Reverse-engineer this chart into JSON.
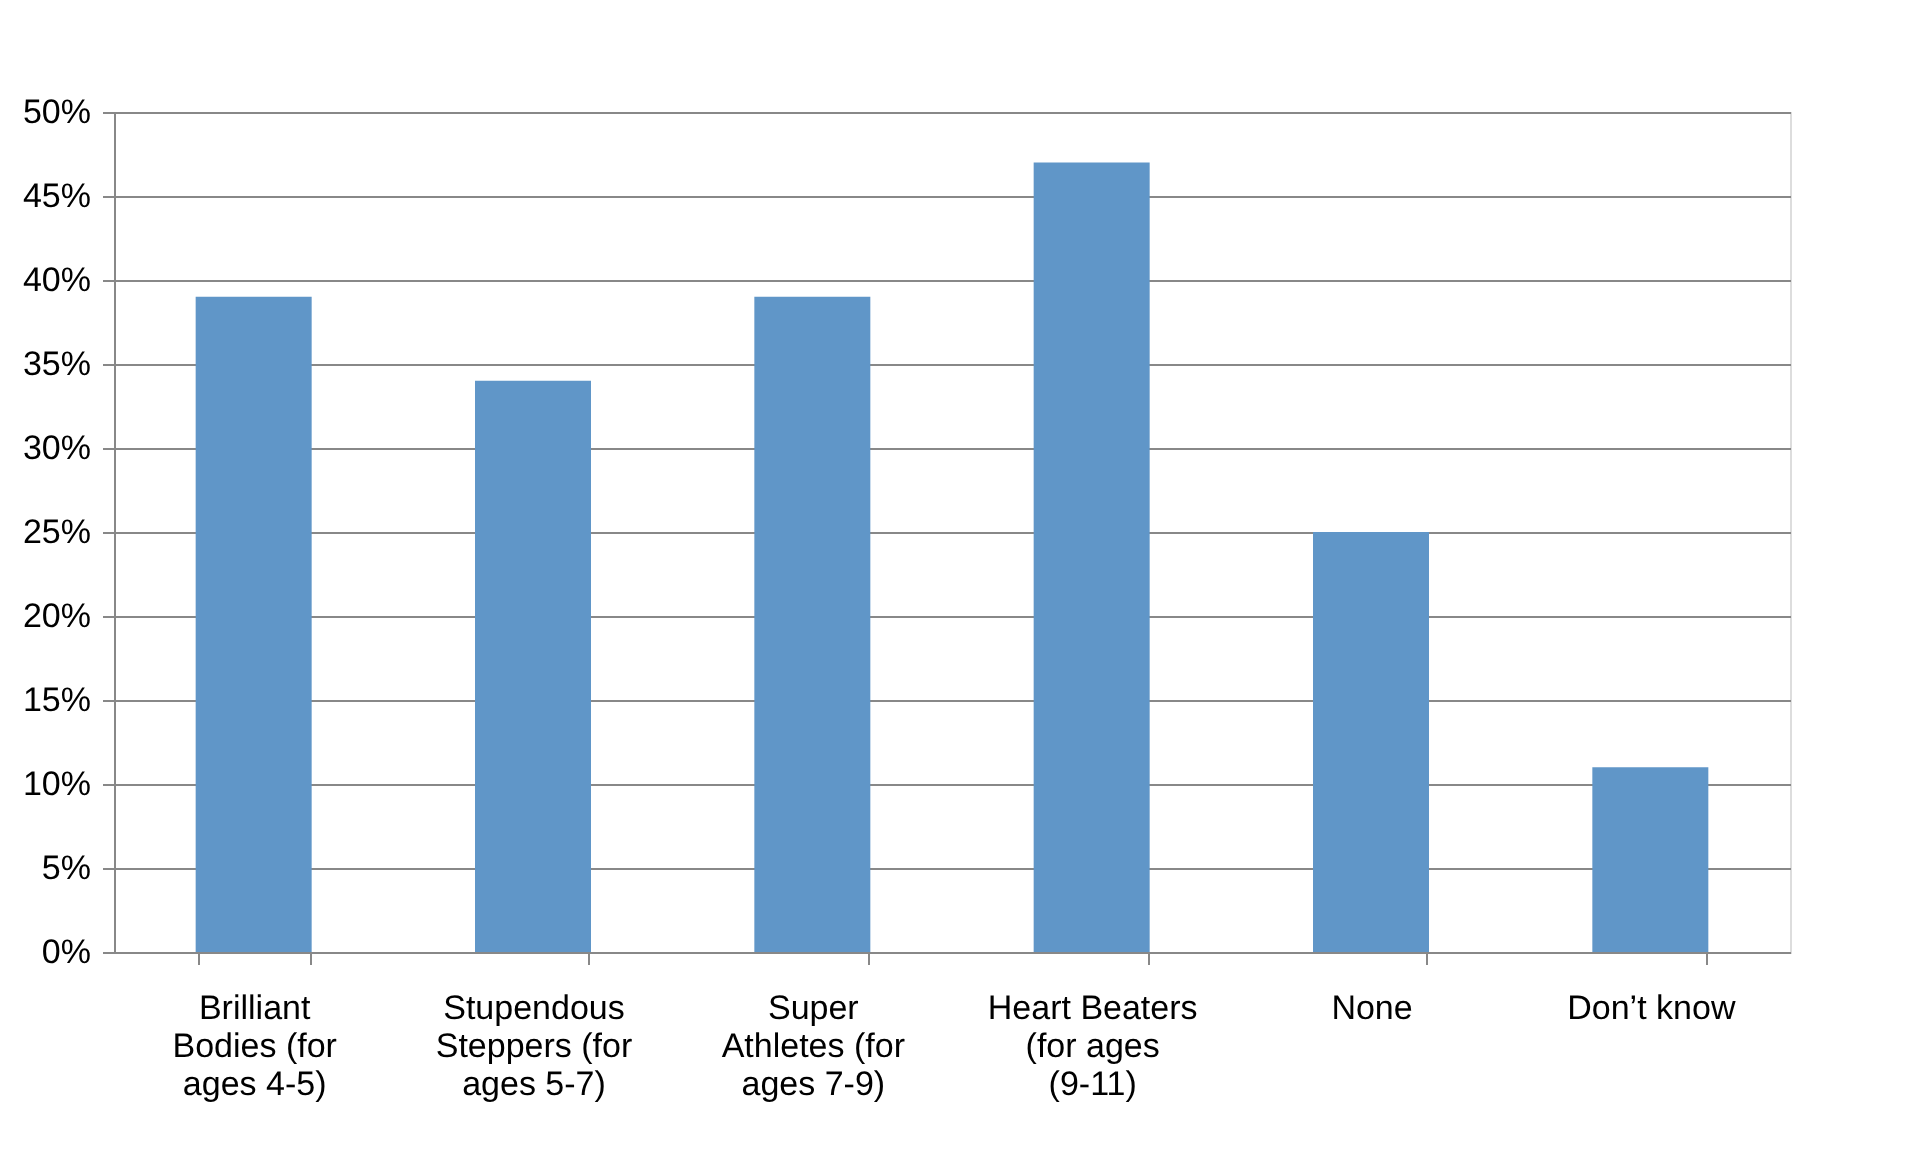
{
  "chart_data": {
    "type": "bar",
    "categories": [
      "Brilliant Bodies (for ages 4-5)",
      "Stupendous Steppers (for ages 5-7)",
      "Super Athletes (for ages 7-9)",
      "Heart Beaters (for ages (9-11)",
      "None",
      "Don’t know"
    ],
    "values": [
      39,
      34,
      39,
      47,
      25,
      11
    ],
    "color": "#6096c8",
    "ylim": [
      0,
      50
    ],
    "yticks": [
      {
        "value": 0,
        "label": "0%"
      },
      {
        "value": 5,
        "label": "5%"
      },
      {
        "value": 10,
        "label": "10%"
      },
      {
        "value": 15,
        "label": "15%"
      },
      {
        "value": 20,
        "label": "20%"
      },
      {
        "value": 25,
        "label": "25%"
      },
      {
        "value": 30,
        "label": "30%"
      },
      {
        "value": 35,
        "label": "35%"
      },
      {
        "value": 40,
        "label": "40%"
      },
      {
        "value": 45,
        "label": "45%"
      },
      {
        "value": 50,
        "label": "50%"
      }
    ],
    "grid": "y"
  }
}
